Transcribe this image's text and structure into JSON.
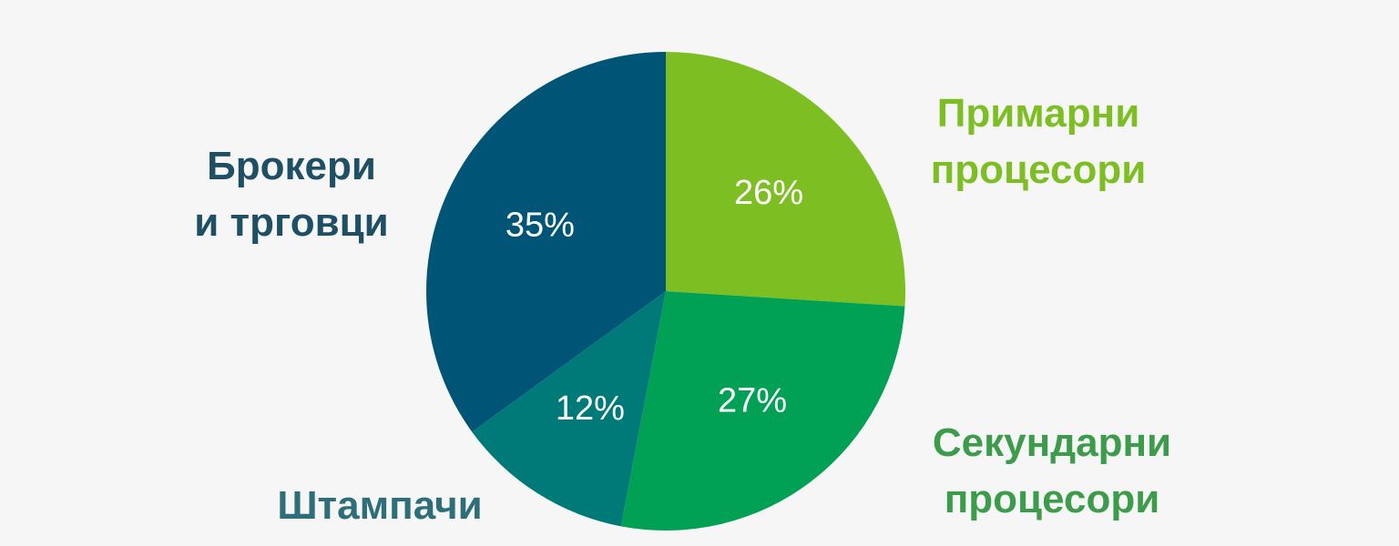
{
  "chart_data": {
    "type": "pie",
    "slices": [
      {
        "label_lines": [
          "Примарни",
          "процесори"
        ],
        "value": 26,
        "value_label": "26%",
        "color": "#7dbe23",
        "label_color": "#7dbe23"
      },
      {
        "label_lines": [
          "Секундарни",
          "процесори"
        ],
        "value": 27,
        "value_label": "27%",
        "color": "#00a055",
        "label_color": "#3d9c4c"
      },
      {
        "label_lines": [
          "Штампачи"
        ],
        "value": 12,
        "value_label": "12%",
        "color": "#007a78",
        "label_color": "#2e6e78"
      },
      {
        "label_lines": [
          "Брокери",
          "и трговци"
        ],
        "value": 35,
        "value_label": "35%",
        "color": "#005577",
        "label_color": "#1f4f64"
      }
    ],
    "start": "12 o'clock",
    "direction": "clockwise",
    "legend": "none",
    "grid": false
  }
}
